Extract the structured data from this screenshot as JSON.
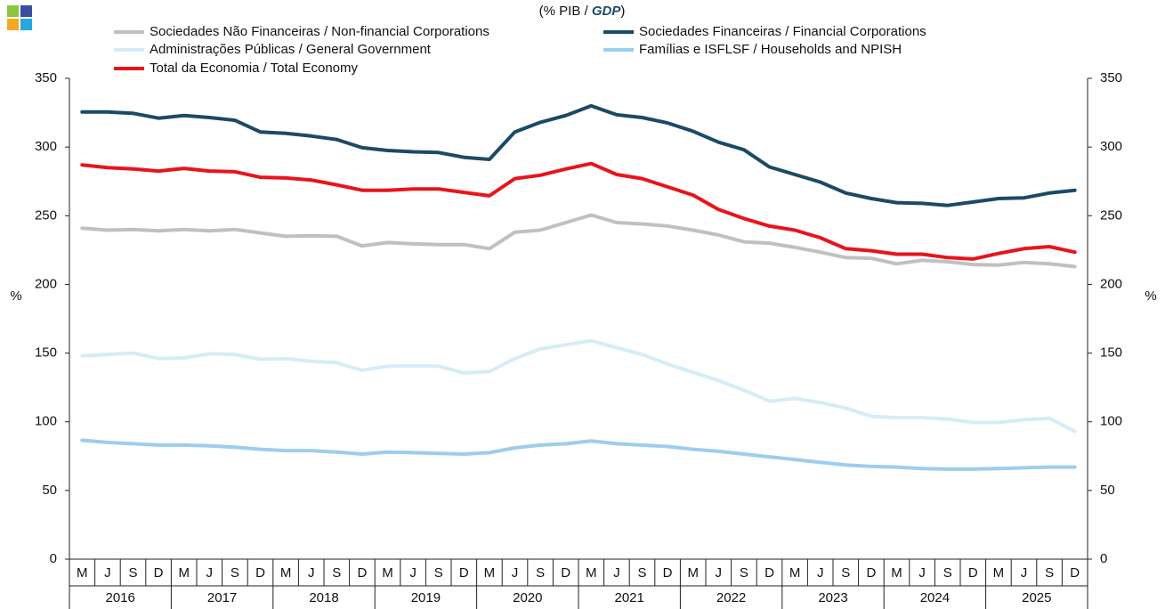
{
  "chart_data": {
    "type": "line",
    "title_prefix": "(% PIB /",
    "title_emphasis": "GDP",
    "title_suffix": ")",
    "y_label": "%",
    "y2_label": "%",
    "categories": [
      "M",
      "J",
      "S",
      "D",
      "M",
      "J",
      "S",
      "D",
      "M",
      "J",
      "S",
      "D",
      "M",
      "J",
      "S",
      "D",
      "M",
      "J",
      "S",
      "D",
      "M",
      "J",
      "S",
      "D",
      "M",
      "J",
      "S",
      "D",
      "M",
      "J",
      "S",
      "D",
      "M",
      "J",
      "S",
      "D",
      "M",
      "J",
      "S",
      "D"
    ],
    "years": [
      "2016",
      "2017",
      "2018",
      "2019",
      "2020",
      "2021",
      "2022",
      "2023",
      "2024",
      "2025"
    ],
    "ylim": [
      0,
      350
    ],
    "yticks": [
      0,
      50,
      100,
      150,
      200,
      250,
      300,
      350
    ],
    "y2lim": [
      0,
      350
    ],
    "y2ticks": [
      0,
      50,
      100,
      150,
      200,
      250,
      300,
      350
    ],
    "legend": "top",
    "grid": false,
    "series": [
      {
        "name": "Sociedades Não Financeiras / Non-financial Corporations",
        "color": "#c0c0c0",
        "values": [
          241,
          239.5,
          240,
          239,
          240,
          239,
          240,
          237.5,
          235,
          235.5,
          235,
          228,
          230.5,
          229.5,
          229,
          229,
          226,
          238,
          239.5,
          245,
          250.5,
          245,
          244,
          242.5,
          239.5,
          236,
          231,
          230,
          227,
          223.5,
          219.5,
          219,
          215,
          217.5,
          216.5,
          214.5,
          214,
          216,
          215,
          213
        ]
      },
      {
        "name": "Sociedades Financeiras / Financial Corporations",
        "color": "#1b4a66",
        "values": [
          325.5,
          325.5,
          324.5,
          321,
          323,
          321.5,
          319.5,
          311,
          310,
          308,
          305.5,
          299.5,
          297.5,
          296.5,
          296,
          292.5,
          291,
          311,
          318,
          323,
          330,
          323.5,
          321.5,
          317.5,
          311.5,
          303.5,
          298,
          285.5,
          280,
          274.5,
          266.5,
          262.5,
          259.5,
          259,
          257.5,
          260,
          262.5,
          263,
          266.5,
          268.5
        ]
      },
      {
        "name": "Administrações Públicas / General Government",
        "color": "#d6ecf7",
        "values": [
          148,
          149,
          150,
          146,
          146.5,
          149.5,
          149,
          145.5,
          146,
          144,
          143,
          137.5,
          140.5,
          140.5,
          140.5,
          135.5,
          136.5,
          146,
          153,
          156,
          159,
          154,
          149,
          142,
          136,
          130,
          123,
          115,
          117,
          114,
          110,
          104,
          103,
          103,
          102,
          99.5,
          99.5,
          101.5,
          102.5,
          93
        ]
      },
      {
        "name": "Famílias e ISFLSF / Households and NPISH",
        "color": "#9dcdf0",
        "values": [
          86.5,
          85,
          84,
          83,
          83,
          82.5,
          81.5,
          80,
          79,
          79,
          78,
          76.5,
          78,
          77.5,
          77,
          76.5,
          77.5,
          81,
          83,
          84,
          86,
          84,
          83,
          82,
          80,
          78.5,
          76.5,
          74.5,
          72.5,
          70.5,
          68.5,
          67.5,
          67,
          66,
          65.5,
          65.5,
          66,
          66.5,
          67,
          67
        ]
      },
      {
        "name": "Total da Economia / Total Economy",
        "color": "#e8141b",
        "values": [
          287,
          285,
          284,
          282.5,
          284.5,
          282.5,
          282,
          278,
          277.5,
          276,
          272.5,
          268.5,
          268.5,
          269.5,
          269.5,
          267,
          264.5,
          277,
          279.5,
          284,
          288,
          280,
          277,
          271,
          265,
          254.5,
          248,
          242.5,
          239.5,
          234,
          226,
          224.5,
          222,
          222,
          219.5,
          218.5,
          222.5,
          226,
          227.5,
          223.5
        ]
      }
    ]
  }
}
